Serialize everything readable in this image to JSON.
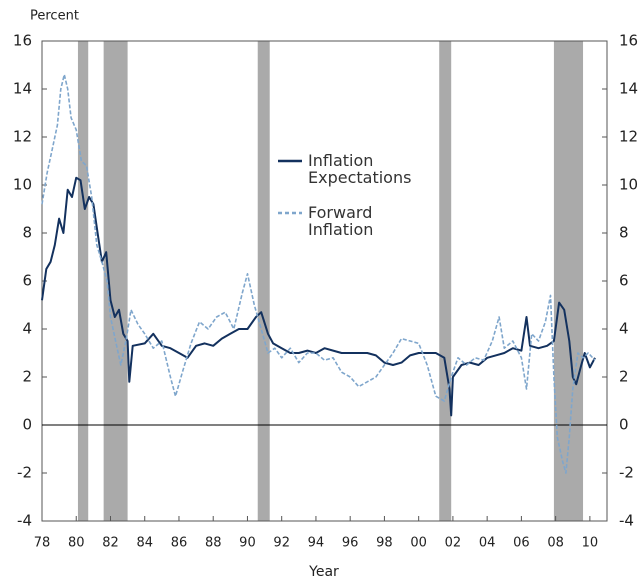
{
  "chart_data": {
    "type": "line",
    "y_label": "Percent",
    "x_label": "Year",
    "xlim": [
      1978,
      2011
    ],
    "ylim": [
      -4,
      16
    ],
    "y2lim": [
      -4,
      16
    ],
    "yticks": [
      -4,
      -2,
      0,
      2,
      4,
      6,
      8,
      10,
      12,
      14,
      16
    ],
    "y2ticks": [
      -4,
      -2,
      0,
      2,
      4,
      6,
      8,
      10,
      12,
      14,
      16
    ],
    "xticks": [
      {
        "value": 1978,
        "label": "78"
      },
      {
        "value": 1980,
        "label": "80"
      },
      {
        "value": 1982,
        "label": "82"
      },
      {
        "value": 1984,
        "label": "84"
      },
      {
        "value": 1986,
        "label": "86"
      },
      {
        "value": 1988,
        "label": "88"
      },
      {
        "value": 1990,
        "label": "90"
      },
      {
        "value": 1992,
        "label": "92"
      },
      {
        "value": 1994,
        "label": "94"
      },
      {
        "value": 1996,
        "label": "96"
      },
      {
        "value": 1998,
        "label": "98"
      },
      {
        "value": 2000,
        "label": "00"
      },
      {
        "value": 2002,
        "label": "02"
      },
      {
        "value": 2004,
        "label": "04"
      },
      {
        "value": 2006,
        "label": "06"
      },
      {
        "value": 2008,
        "label": "08"
      },
      {
        "value": 2010,
        "label": "10"
      }
    ],
    "recessions": [
      [
        1980.1,
        1980.7
      ],
      [
        1981.6,
        1983.0
      ],
      [
        1990.6,
        1991.3
      ],
      [
        2001.2,
        2001.9
      ],
      [
        2007.9,
        2009.6
      ]
    ],
    "recession_color": "#aaaaaa",
    "series": [
      {
        "name": "Inflation Expectations",
        "color": "#13315e",
        "dash": false,
        "x": [
          1978.0,
          1978.25,
          1978.5,
          1978.75,
          1979.0,
          1979.25,
          1979.5,
          1979.75,
          1980.0,
          1980.25,
          1980.5,
          1980.75,
          1981.0,
          1981.25,
          1981.5,
          1981.75,
          1982.0,
          1982.25,
          1982.5,
          1982.75,
          1983.0,
          1983.1,
          1983.3,
          1984.0,
          1984.5,
          1985.0,
          1985.5,
          1986.0,
          1986.5,
          1987.0,
          1987.5,
          1988.0,
          1988.5,
          1989.0,
          1989.5,
          1990.0,
          1990.5,
          1990.8,
          1991.2,
          1991.5,
          1992.0,
          1992.5,
          1993.0,
          1993.5,
          1994.0,
          1994.5,
          1995.0,
          1995.5,
          1996.0,
          1996.5,
          1997.0,
          1997.5,
          1998.0,
          1998.5,
          1999.0,
          1999.5,
          2000.0,
          2000.5,
          2001.0,
          2001.5,
          2001.8,
          2001.9,
          2002.0,
          2002.5,
          2003.0,
          2003.5,
          2004.0,
          2004.5,
          2005.0,
          2005.5,
          2006.0,
          2006.3,
          2006.5,
          2007.0,
          2007.5,
          2007.9,
          2008.2,
          2008.5,
          2008.8,
          2009.0,
          2009.2,
          2009.5,
          2009.7,
          2010.0,
          2010.3
        ],
        "values": [
          5.2,
          6.5,
          6.8,
          7.5,
          8.6,
          8.0,
          9.8,
          9.5,
          10.3,
          10.2,
          9.0,
          9.5,
          9.2,
          8.0,
          6.8,
          7.2,
          5.2,
          4.5,
          4.8,
          3.8,
          3.5,
          1.8,
          3.3,
          3.4,
          3.8,
          3.3,
          3.2,
          3.0,
          2.8,
          3.3,
          3.4,
          3.3,
          3.6,
          3.8,
          4.0,
          4.0,
          4.5,
          4.7,
          3.8,
          3.4,
          3.2,
          3.0,
          3.0,
          3.1,
          3.0,
          3.2,
          3.1,
          3.0,
          3.0,
          3.0,
          3.0,
          2.9,
          2.6,
          2.5,
          2.6,
          2.9,
          3.0,
          3.0,
          3.0,
          2.8,
          1.5,
          0.4,
          2.0,
          2.5,
          2.6,
          2.5,
          2.8,
          2.9,
          3.0,
          3.2,
          3.1,
          4.5,
          3.3,
          3.2,
          3.3,
          3.5,
          5.1,
          4.8,
          3.5,
          2.0,
          1.7,
          2.5,
          3.0,
          2.4,
          2.8
        ]
      },
      {
        "name": "Forward Inflation",
        "color": "#7fa6cc",
        "dash": true,
        "x": [
          1978.0,
          1978.3,
          1978.6,
          1978.9,
          1979.1,
          1979.3,
          1979.5,
          1979.7,
          1980.0,
          1980.3,
          1980.6,
          1980.9,
          1981.2,
          1981.5,
          1981.8,
          1982.0,
          1982.3,
          1982.6,
          1982.9,
          1983.2,
          1983.6,
          1984.0,
          1984.5,
          1985.0,
          1985.5,
          1985.8,
          1986.2,
          1986.7,
          1987.2,
          1987.7,
          1988.2,
          1988.7,
          1989.2,
          1989.7,
          1990.0,
          1990.4,
          1990.8,
          1991.2,
          1991.6,
          1992.0,
          1992.5,
          1993.0,
          1993.5,
          1994.0,
          1994.5,
          1995.0,
          1995.5,
          1996.0,
          1996.5,
          1997.0,
          1997.5,
          1998.0,
          1998.5,
          1999.0,
          1999.5,
          2000.0,
          2000.5,
          2001.0,
          2001.5,
          2001.9,
          2002.3,
          2002.8,
          2003.3,
          2003.8,
          2004.3,
          2004.7,
          2005.0,
          2005.5,
          2006.0,
          2006.3,
          2006.6,
          2007.0,
          2007.4,
          2007.7,
          2007.9,
          2008.1,
          2008.4,
          2008.6,
          2008.8,
          2009.0,
          2009.3,
          2009.6,
          2009.9,
          2010.3
        ],
        "values": [
          9.2,
          10.5,
          11.5,
          12.5,
          14.0,
          14.6,
          14.0,
          12.8,
          12.3,
          11.0,
          10.8,
          9.5,
          7.5,
          6.8,
          6.0,
          4.5,
          3.5,
          2.5,
          3.5,
          4.8,
          4.2,
          3.8,
          3.2,
          3.5,
          2.0,
          1.2,
          2.2,
          3.4,
          4.3,
          4.0,
          4.5,
          4.7,
          4.0,
          5.5,
          6.3,
          5.0,
          4.0,
          3.0,
          3.2,
          2.8,
          3.2,
          2.6,
          3.0,
          3.0,
          2.7,
          2.8,
          2.2,
          2.0,
          1.6,
          1.8,
          2.0,
          2.5,
          3.0,
          3.6,
          3.5,
          3.4,
          2.5,
          1.2,
          1.0,
          2.0,
          2.8,
          2.5,
          2.8,
          2.7,
          3.5,
          4.5,
          3.2,
          3.5,
          2.8,
          1.5,
          3.8,
          3.5,
          4.3,
          5.4,
          2.0,
          -0.5,
          -1.5,
          -2.0,
          -0.5,
          1.5,
          3.0,
          2.8,
          3.0,
          2.7
        ]
      }
    ]
  }
}
